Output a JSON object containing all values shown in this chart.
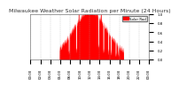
{
  "title": "Milwaukee Weather Solar Radiation per Minute (24 Hours)",
  "bar_color": "#ff0000",
  "background_color": "#ffffff",
  "grid_color": "#aaaaaa",
  "xlabel": "",
  "ylabel": "",
  "ylim": [
    0,
    1.0
  ],
  "xlim": [
    0,
    1440
  ],
  "legend_label": "Solar Rad",
  "legend_color": "#ff0000",
  "title_fontsize": 4.5,
  "tick_fontsize": 2.8
}
